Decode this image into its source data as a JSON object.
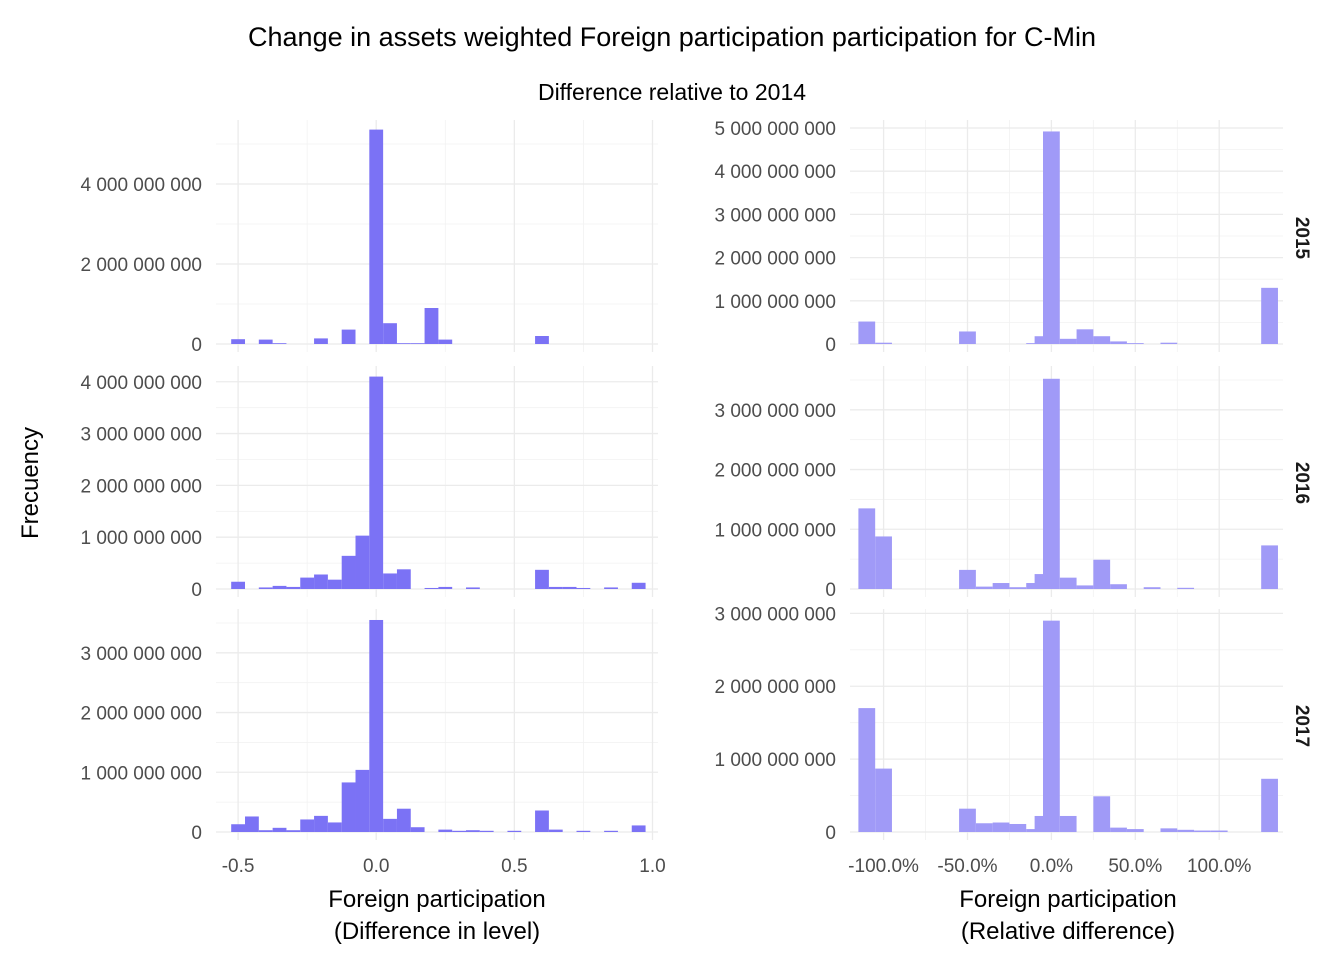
{
  "chart_data": {
    "type": "bar",
    "title": "Change in assets weighted Foreign participation participation for C-Min",
    "subtitle": "Difference relative to 2014",
    "ylabel": "Frecuency",
    "facet_labels": [
      "2015",
      "2016",
      "2017"
    ],
    "bar_colors": {
      "level": "#7b72f5",
      "relative": "#a09af7"
    },
    "columns": [
      {
        "xlabel_line1": "Foreign participation",
        "xlabel_line2": "(Difference in level)",
        "bin_width": 0.05,
        "xlim": [
          -0.58,
          1.02
        ],
        "x_ticks": [
          -0.5,
          0.0,
          0.5,
          1.0
        ],
        "x_tick_labels": [
          "-0.5",
          "0.0",
          "0.5",
          "1.0"
        ],
        "panels": [
          {
            "facet": "2015",
            "ylim": [
              0,
              5400000000
            ],
            "y_ticks": [
              0,
              2000000000,
              4000000000
            ],
            "y_tick_labels": [
              "0",
              "2 000 000 000",
              "4 000 000 000"
            ],
            "bins": [
              {
                "x": -0.5,
                "y": 120000000
              },
              {
                "x": -0.4,
                "y": 110000000
              },
              {
                "x": -0.35,
                "y": 20000000
              },
              {
                "x": -0.2,
                "y": 140000000
              },
              {
                "x": -0.1,
                "y": 360000000
              },
              {
                "x": 0.0,
                "y": 5360000000
              },
              {
                "x": 0.05,
                "y": 520000000
              },
              {
                "x": 0.1,
                "y": 20000000
              },
              {
                "x": 0.15,
                "y": 20000000
              },
              {
                "x": 0.2,
                "y": 900000000
              },
              {
                "x": 0.25,
                "y": 110000000
              },
              {
                "x": 0.6,
                "y": 200000000
              }
            ]
          },
          {
            "facet": "2016",
            "ylim": [
              0,
              4150000000
            ],
            "y_ticks": [
              0,
              1000000000,
              2000000000,
              3000000000,
              4000000000
            ],
            "y_tick_labels": [
              "0",
              "1 000 000 000",
              "2 000 000 000",
              "3 000 000 000",
              "4 000 000 000"
            ],
            "bins": [
              {
                "x": -0.5,
                "y": 140000000
              },
              {
                "x": -0.4,
                "y": 30000000
              },
              {
                "x": -0.35,
                "y": 60000000
              },
              {
                "x": -0.3,
                "y": 40000000
              },
              {
                "x": -0.25,
                "y": 220000000
              },
              {
                "x": -0.2,
                "y": 280000000
              },
              {
                "x": -0.15,
                "y": 180000000
              },
              {
                "x": -0.1,
                "y": 640000000
              },
              {
                "x": -0.05,
                "y": 1030000000
              },
              {
                "x": 0.0,
                "y": 4100000000
              },
              {
                "x": 0.05,
                "y": 300000000
              },
              {
                "x": 0.1,
                "y": 380000000
              },
              {
                "x": 0.2,
                "y": 20000000
              },
              {
                "x": 0.25,
                "y": 40000000
              },
              {
                "x": 0.35,
                "y": 30000000
              },
              {
                "x": 0.6,
                "y": 370000000
              },
              {
                "x": 0.65,
                "y": 40000000
              },
              {
                "x": 0.7,
                "y": 40000000
              },
              {
                "x": 0.75,
                "y": 20000000
              },
              {
                "x": 0.85,
                "y": 30000000
              },
              {
                "x": 0.95,
                "y": 120000000
              }
            ]
          },
          {
            "facet": "2017",
            "ylim": [
              0,
              3600000000
            ],
            "y_ticks": [
              0,
              1000000000,
              2000000000,
              3000000000
            ],
            "y_tick_labels": [
              "0",
              "1 000 000 000",
              "2 000 000 000",
              "3 000 000 000"
            ],
            "bins": [
              {
                "x": -0.5,
                "y": 130000000
              },
              {
                "x": -0.45,
                "y": 260000000
              },
              {
                "x": -0.4,
                "y": 30000000
              },
              {
                "x": -0.35,
                "y": 70000000
              },
              {
                "x": -0.3,
                "y": 30000000
              },
              {
                "x": -0.25,
                "y": 210000000
              },
              {
                "x": -0.2,
                "y": 270000000
              },
              {
                "x": -0.15,
                "y": 160000000
              },
              {
                "x": -0.1,
                "y": 830000000
              },
              {
                "x": -0.05,
                "y": 1040000000
              },
              {
                "x": 0.0,
                "y": 3550000000
              },
              {
                "x": 0.05,
                "y": 220000000
              },
              {
                "x": 0.1,
                "y": 390000000
              },
              {
                "x": 0.15,
                "y": 80000000
              },
              {
                "x": 0.25,
                "y": 40000000
              },
              {
                "x": 0.3,
                "y": 20000000
              },
              {
                "x": 0.35,
                "y": 30000000
              },
              {
                "x": 0.4,
                "y": 20000000
              },
              {
                "x": 0.5,
                "y": 20000000
              },
              {
                "x": 0.6,
                "y": 360000000
              },
              {
                "x": 0.65,
                "y": 40000000
              },
              {
                "x": 0.75,
                "y": 20000000
              },
              {
                "x": 0.85,
                "y": 20000000
              },
              {
                "x": 0.95,
                "y": 110000000
              }
            ]
          }
        ]
      },
      {
        "xlabel_line1": "Foreign participation",
        "xlabel_line2": "(Relative difference)",
        "bin_width": 0.1,
        "xlim": [
          -1.2,
          1.38
        ],
        "x_ticks": [
          -1.0,
          -0.5,
          0.0,
          0.5,
          1.0
        ],
        "x_tick_labels": [
          "-100.0%",
          "-50.0%",
          "0.0%",
          "50.0%",
          "100.0%"
        ],
        "panels": [
          {
            "facet": "2015",
            "ylim": [
              0,
              5000000000
            ],
            "y_ticks": [
              0,
              1000000000,
              2000000000,
              3000000000,
              4000000000,
              5000000000
            ],
            "y_tick_labels": [
              "0",
              "1 000 000 000",
              "2 000 000 000",
              "3 000 000 000",
              "4 000 000 000",
              "5 000 000 000"
            ],
            "bins": [
              {
                "x": -1.1,
                "y": 520000000
              },
              {
                "x": -1.0,
                "y": 30000000
              },
              {
                "x": -0.5,
                "y": 290000000
              },
              {
                "x": -0.1,
                "y": 20000000
              },
              {
                "x": -0.05,
                "y": 180000000
              },
              {
                "x": 0.0,
                "y": 4920000000
              },
              {
                "x": 0.1,
                "y": 120000000
              },
              {
                "x": 0.2,
                "y": 340000000
              },
              {
                "x": 0.3,
                "y": 180000000
              },
              {
                "x": 0.4,
                "y": 60000000
              },
              {
                "x": 0.5,
                "y": 20000000
              },
              {
                "x": 0.7,
                "y": 30000000
              },
              {
                "x": 1.3,
                "y": 1300000000
              }
            ]
          },
          {
            "facet": "2016",
            "ylim": [
              0,
              3600000000
            ],
            "y_ticks": [
              0,
              1000000000,
              2000000000,
              3000000000
            ],
            "y_tick_labels": [
              "0",
              "1 000 000 000",
              "2 000 000 000",
              "3 000 000 000"
            ],
            "bins": [
              {
                "x": -1.1,
                "y": 1350000000
              },
              {
                "x": -1.0,
                "y": 880000000
              },
              {
                "x": -0.5,
                "y": 320000000
              },
              {
                "x": -0.4,
                "y": 40000000
              },
              {
                "x": -0.3,
                "y": 100000000
              },
              {
                "x": -0.2,
                "y": 30000000
              },
              {
                "x": -0.1,
                "y": 100000000
              },
              {
                "x": -0.05,
                "y": 250000000
              },
              {
                "x": 0.0,
                "y": 3520000000
              },
              {
                "x": 0.1,
                "y": 190000000
              },
              {
                "x": 0.2,
                "y": 60000000
              },
              {
                "x": 0.3,
                "y": 490000000
              },
              {
                "x": 0.4,
                "y": 80000000
              },
              {
                "x": 0.6,
                "y": 30000000
              },
              {
                "x": 0.8,
                "y": 20000000
              },
              {
                "x": 1.3,
                "y": 730000000
              }
            ]
          },
          {
            "facet": "2017",
            "ylim": [
              0,
              2950000000
            ],
            "y_ticks": [
              0,
              1000000000,
              2000000000,
              3000000000
            ],
            "y_tick_labels": [
              "0",
              "1 000 000 000",
              "2 000 000 000",
              "3 000 000 000"
            ],
            "bins": [
              {
                "x": -1.1,
                "y": 1700000000
              },
              {
                "x": -1.0,
                "y": 870000000
              },
              {
                "x": -0.5,
                "y": 320000000
              },
              {
                "x": -0.4,
                "y": 120000000
              },
              {
                "x": -0.3,
                "y": 130000000
              },
              {
                "x": -0.2,
                "y": 110000000
              },
              {
                "x": -0.1,
                "y": 40000000
              },
              {
                "x": -0.05,
                "y": 220000000
              },
              {
                "x": 0.0,
                "y": 2900000000
              },
              {
                "x": 0.1,
                "y": 220000000
              },
              {
                "x": 0.3,
                "y": 490000000
              },
              {
                "x": 0.4,
                "y": 60000000
              },
              {
                "x": 0.5,
                "y": 40000000
              },
              {
                "x": 0.7,
                "y": 50000000
              },
              {
                "x": 0.8,
                "y": 30000000
              },
              {
                "x": 0.9,
                "y": 20000000
              },
              {
                "x": 1.0,
                "y": 20000000
              },
              {
                "x": 1.3,
                "y": 730000000
              }
            ]
          }
        ]
      }
    ]
  }
}
